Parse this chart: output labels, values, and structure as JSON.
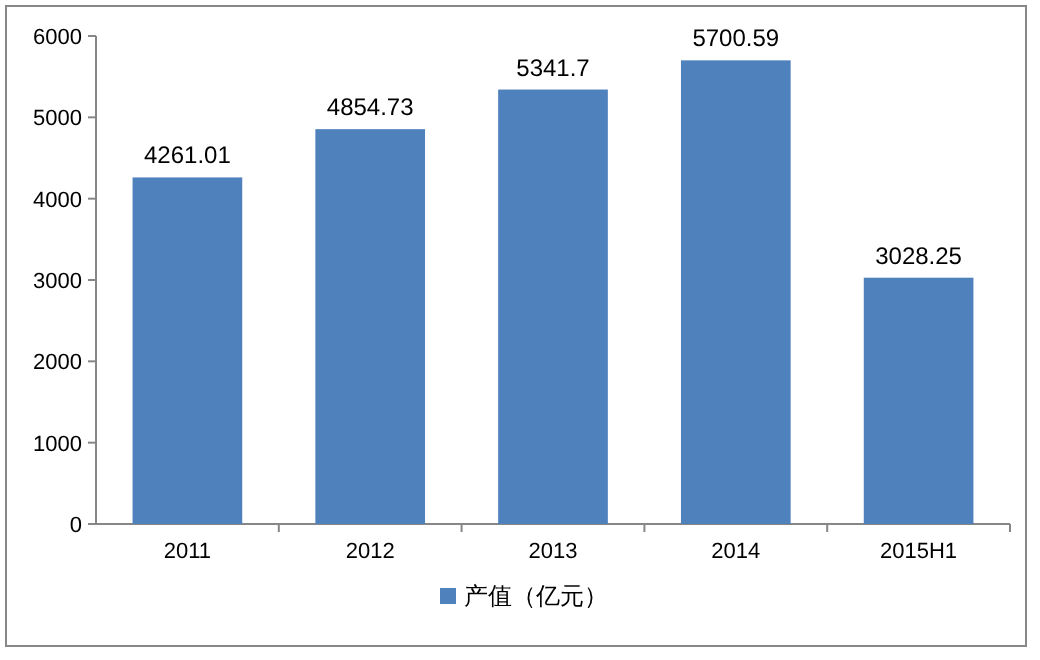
{
  "chart_data": {
    "type": "bar",
    "categories": [
      "2011",
      "2012",
      "2013",
      "2014",
      "2015H1"
    ],
    "series": [
      {
        "name": "产值（亿元）",
        "color": "#4f81bd",
        "values": [
          4261.01,
          4854.73,
          5341.7,
          5700.59,
          3028.25
        ]
      }
    ],
    "ylim": [
      0,
      6000
    ],
    "yticks": [
      0,
      1000,
      2000,
      3000,
      4000,
      5000,
      6000
    ],
    "data_labels": true,
    "legend": "bottom"
  }
}
